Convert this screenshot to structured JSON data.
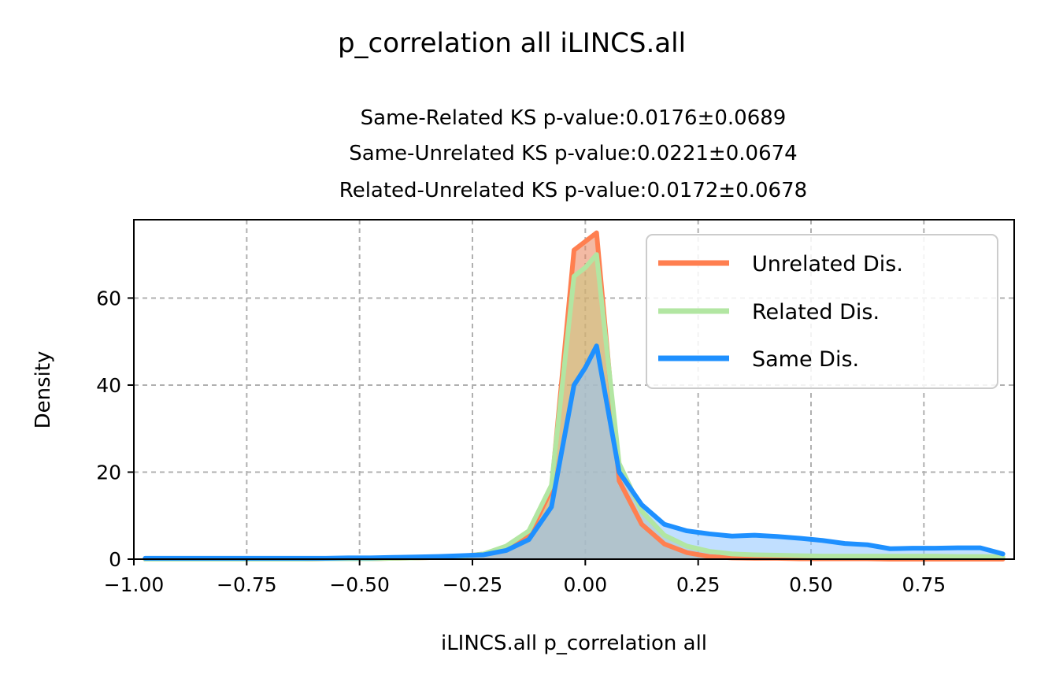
{
  "chart_data": {
    "type": "area",
    "suptitle": "p_correlation all iLINCS.all",
    "subtitle_lines": [
      "Same-Related KS p-value:0.0176±0.0689",
      "Same-Unrelated KS p-value:0.0221±0.0674",
      "Related-Unrelated KS p-value:0.0172±0.0678"
    ],
    "xlabel": "iLINCS.all p_correlation all",
    "ylabel": "Density",
    "xlim": [
      -1.0,
      0.95
    ],
    "ylim": [
      0,
      78
    ],
    "xticks": [
      -1.0,
      -0.75,
      -0.5,
      -0.25,
      0.0,
      0.25,
      0.5,
      0.75
    ],
    "xtick_labels": [
      "−1.00",
      "−0.75",
      "−0.50",
      "−0.25",
      "0.00",
      "0.25",
      "0.50",
      "0.75"
    ],
    "yticks": [
      0,
      20,
      40,
      60
    ],
    "ytick_labels": [
      "0",
      "20",
      "40",
      "60"
    ],
    "grid": true,
    "legend_position": "top-right",
    "series": [
      {
        "name": "Unrelated Dis.",
        "color": "#FF7F50",
        "fill": "#E9825A",
        "x": [
          -0.975,
          -0.925,
          -0.875,
          -0.825,
          -0.775,
          -0.725,
          -0.675,
          -0.625,
          -0.575,
          -0.525,
          -0.475,
          -0.425,
          -0.375,
          -0.325,
          -0.275,
          -0.225,
          -0.175,
          -0.125,
          -0.075,
          -0.025,
          0.0,
          0.025,
          0.075,
          0.125,
          0.175,
          0.225,
          0.275,
          0.325,
          0.375,
          0.425,
          0.475,
          0.525,
          0.575,
          0.625,
          0.675,
          0.725,
          0.775,
          0.825,
          0.875,
          0.925
        ],
        "y": [
          0,
          0,
          0,
          0,
          0,
          0,
          0,
          0,
          0.1,
          0.1,
          0.1,
          0.2,
          0.3,
          0.4,
          0.6,
          1.2,
          2.5,
          5.5,
          16,
          71,
          73,
          75,
          18,
          8,
          3.5,
          1.5,
          0.6,
          0.3,
          0.2,
          0.2,
          0.1,
          0.1,
          0.1,
          0.1,
          0,
          0,
          0,
          0,
          0,
          0
        ]
      },
      {
        "name": "Related Dis.",
        "color": "#B2E6A2",
        "fill": "#C9C77E",
        "x": [
          -0.975,
          -0.925,
          -0.875,
          -0.825,
          -0.775,
          -0.725,
          -0.675,
          -0.625,
          -0.575,
          -0.525,
          -0.475,
          -0.425,
          -0.375,
          -0.325,
          -0.275,
          -0.225,
          -0.175,
          -0.125,
          -0.075,
          -0.025,
          0.0,
          0.025,
          0.075,
          0.125,
          0.175,
          0.225,
          0.275,
          0.325,
          0.375,
          0.425,
          0.475,
          0.525,
          0.575,
          0.625,
          0.675,
          0.725,
          0.775,
          0.825,
          0.875,
          0.925
        ],
        "y": [
          0,
          0,
          0,
          0,
          0,
          0,
          0,
          0,
          0.1,
          0.1,
          0.1,
          0.2,
          0.3,
          0.4,
          0.6,
          1.2,
          3,
          6.5,
          17,
          65,
          67,
          70,
          22,
          11,
          5.5,
          3,
          1.8,
          1.2,
          1,
          0.9,
          0.8,
          0.7,
          0.7,
          0.7,
          0.7,
          0.7,
          0.7,
          0.6,
          0.6,
          0.5
        ]
      },
      {
        "name": "Same Dis.",
        "color": "#1E90FF",
        "fill": "#8EC5FF",
        "x": [
          -0.975,
          -0.925,
          -0.875,
          -0.825,
          -0.775,
          -0.725,
          -0.675,
          -0.625,
          -0.575,
          -0.525,
          -0.475,
          -0.425,
          -0.375,
          -0.325,
          -0.275,
          -0.225,
          -0.175,
          -0.125,
          -0.075,
          -0.025,
          0.0,
          0.025,
          0.075,
          0.125,
          0.175,
          0.225,
          0.275,
          0.325,
          0.375,
          0.425,
          0.475,
          0.525,
          0.575,
          0.625,
          0.675,
          0.725,
          0.775,
          0.825,
          0.875,
          0.925
        ],
        "y": [
          0.2,
          0.2,
          0.2,
          0.2,
          0.2,
          0.2,
          0.2,
          0.2,
          0.2,
          0.3,
          0.3,
          0.4,
          0.5,
          0.6,
          0.8,
          1,
          2,
          4.5,
          12,
          40,
          44,
          49,
          20,
          12.5,
          8,
          6.5,
          5.8,
          5.3,
          5.5,
          5.2,
          4.8,
          4.3,
          3.6,
          3.3,
          2.4,
          2.5,
          2.5,
          2.6,
          2.6,
          1.2
        ]
      }
    ]
  }
}
